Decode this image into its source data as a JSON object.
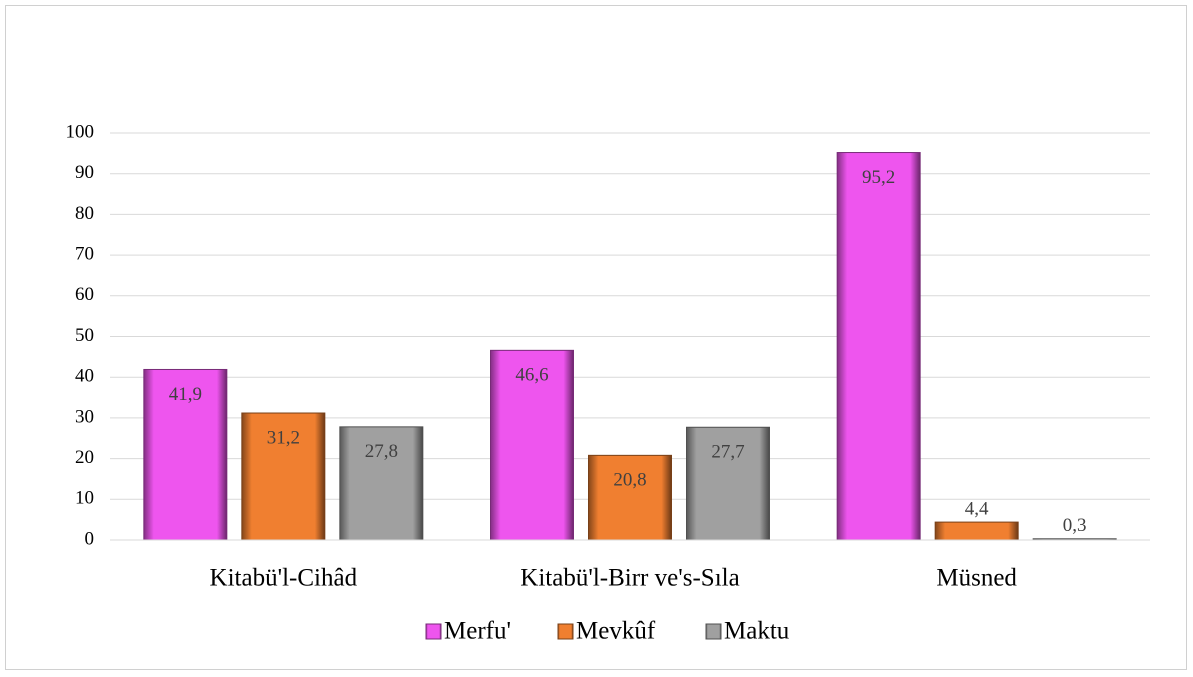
{
  "chart_data": {
    "type": "bar",
    "categories": [
      "Kitabü'l-Cihâd",
      "Kitabü'l-Birr ve's-Sıla",
      "Müsned"
    ],
    "series": [
      {
        "name": "Merfu'",
        "color": "#ee55ee",
        "values": [
          41.9,
          46.6,
          95.2
        ],
        "value_labels": [
          "41,9",
          "46,6",
          "95,2"
        ]
      },
      {
        "name": "Mevkûf",
        "color": "#f07f30",
        "values": [
          31.2,
          20.8,
          4.4
        ],
        "value_labels": [
          "31,2",
          "20,8",
          "4,4"
        ]
      },
      {
        "name": "Maktu",
        "color": "#a0a0a0",
        "values": [
          27.8,
          27.7,
          0.3
        ],
        "value_labels": [
          "27,8",
          "27,7",
          "0,3"
        ]
      }
    ],
    "ylim": [
      0,
      100
    ],
    "yticks": [
      0,
      10,
      20,
      30,
      40,
      50,
      60,
      70,
      80,
      90,
      100
    ],
    "grid": true,
    "legend": "bottom"
  }
}
